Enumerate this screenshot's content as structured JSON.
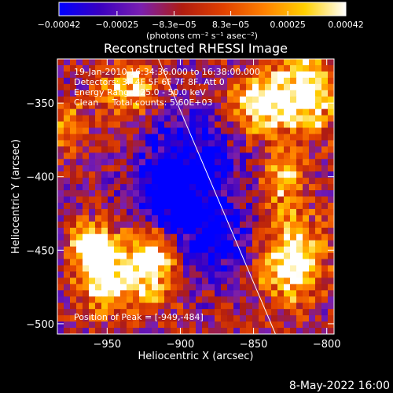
{
  "chart_data": {
    "type": "heatmap",
    "title": "Reconstructed RHESSI Image",
    "xlabel": "Heliocentric X (arcsec)",
    "ylabel": "Heliocentric Y (arcsec)",
    "xlim": [
      -984,
      -795
    ],
    "ylim": [
      -507,
      -320
    ],
    "x_ticks": [
      -950,
      -900,
      -850,
      -800
    ],
    "x_tick_labels": [
      "−950",
      "−900",
      "−850",
      "−800"
    ],
    "y_ticks": [
      -350,
      -400,
      -450,
      -500
    ],
    "y_tick_labels": [
      "−350",
      "−400",
      "−450",
      "−500"
    ],
    "colorbar": {
      "range": [
        -0.00042,
        0.00042
      ],
      "ticks": [
        -0.00042,
        -0.00025,
        -8.3e-05,
        8.3e-05,
        0.00025,
        0.00042
      ],
      "tick_labels": [
        "−0.00042",
        "−0.00025",
        "−8.3e−05",
        "8.3e−05",
        "0.00025",
        "0.00042"
      ],
      "unit_label": "(photons cm⁻² s⁻¹ asec⁻²)",
      "colors": [
        "#0000ff",
        "#3a00c0",
        "#7a1fb0",
        "#b01c10",
        "#e04000",
        "#ff8000",
        "#ffd000",
        "#ffffff"
      ]
    },
    "annotations": {
      "time_range": "19-Jan-2010 16:34:36.000 to 16:38:00.000",
      "detectors": "Detectors: 3F 4F 5F 6F 7F 8F, Att 0",
      "energy": "Energy Range: 25.0 - 50.0 keV",
      "clean": "Clean     Total counts: 5.60E+03",
      "peak": "Position of Peak = [-949,-484]"
    },
    "limb_line": {
      "x": [
        -915,
        -835
      ],
      "y": [
        -320,
        -507
      ]
    },
    "bright_regions": [
      {
        "x": -952,
        "y": -465,
        "sx": 12,
        "sy": 16,
        "amp": 1.0
      },
      {
        "x": -963,
        "y": -445,
        "sx": 8,
        "sy": 8,
        "amp": 0.75
      },
      {
        "x": -920,
        "y": -460,
        "sx": 12,
        "sy": 18,
        "amp": 0.75
      },
      {
        "x": -818,
        "y": -345,
        "sx": 17,
        "sy": 18,
        "amp": 0.85
      },
      {
        "x": -850,
        "y": -352,
        "sx": 12,
        "sy": 12,
        "amp": 0.65
      },
      {
        "x": -825,
        "y": -455,
        "sx": 15,
        "sy": 20,
        "amp": 0.8
      },
      {
        "x": -830,
        "y": -400,
        "sx": 10,
        "sy": 12,
        "amp": 0.55
      },
      {
        "x": -935,
        "y": -340,
        "sx": 14,
        "sy": 12,
        "amp": 0.55
      },
      {
        "x": -975,
        "y": -365,
        "sx": 8,
        "sy": 10,
        "amp": 0.45
      }
    ],
    "dim_regions": [
      {
        "x": -895,
        "y": -395,
        "sx": 22,
        "sy": 25,
        "amp": -0.55
      },
      {
        "x": -875,
        "y": -445,
        "sx": 18,
        "sy": 18,
        "amp": -0.45
      },
      {
        "x": -912,
        "y": -420,
        "sx": 15,
        "sy": 15,
        "amp": -0.35
      }
    ]
  },
  "footer": {
    "date": "8-May-2022 16:00"
  }
}
